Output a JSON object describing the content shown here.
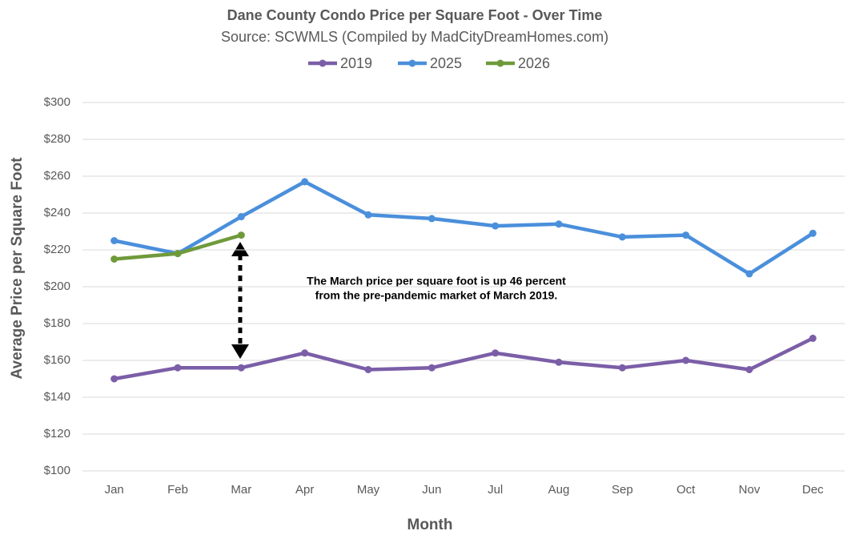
{
  "chart_data": {
    "type": "line",
    "title": "Dane County Condo Price per Square Foot - Over Time",
    "subtitle": "Source: SCWMLS (Compiled by MadCityDreamHomes.com)",
    "x_label": "Month",
    "y_label": "Average Price per Square Foot",
    "annotation": [
      "The March price per square foot is up 46 percent",
      "from the pre-pandemic market of March 2019."
    ],
    "categories": [
      "Jan",
      "Feb",
      "Mar",
      "Apr",
      "May",
      "Jun",
      "Jul",
      "Aug",
      "Sep",
      "Oct",
      "Nov",
      "Dec"
    ],
    "series": [
      {
        "name": "2019",
        "color": "#7b5ea7",
        "values": [
          150,
          156,
          156,
          164,
          155,
          156,
          164,
          159,
          156,
          160,
          155,
          172
        ]
      },
      {
        "name": "2025",
        "color": "#4a8fdb",
        "values": [
          225,
          218,
          238,
          257,
          239,
          237,
          233,
          234,
          227,
          228,
          207,
          229
        ]
      },
      {
        "name": "2026",
        "color": "#6f9a3a",
        "values": [
          215,
          218,
          228,
          null,
          null,
          null,
          null,
          null,
          null,
          null,
          null,
          null
        ]
      }
    ],
    "ylim": [
      100,
      300
    ],
    "yticks": [
      {
        "value": 100,
        "label": "$100"
      },
      {
        "value": 120,
        "label": "$120"
      },
      {
        "value": 140,
        "label": "$140"
      },
      {
        "value": 160,
        "label": "$160"
      },
      {
        "value": 180,
        "label": "$180"
      },
      {
        "value": 200,
        "label": "$200"
      },
      {
        "value": 220,
        "label": "$220"
      },
      {
        "value": 240,
        "label": "$240"
      },
      {
        "value": 260,
        "label": "$260"
      },
      {
        "value": 280,
        "label": "$280"
      },
      {
        "value": 300,
        "label": "$300"
      }
    ],
    "grid": true,
    "legend": "top"
  }
}
